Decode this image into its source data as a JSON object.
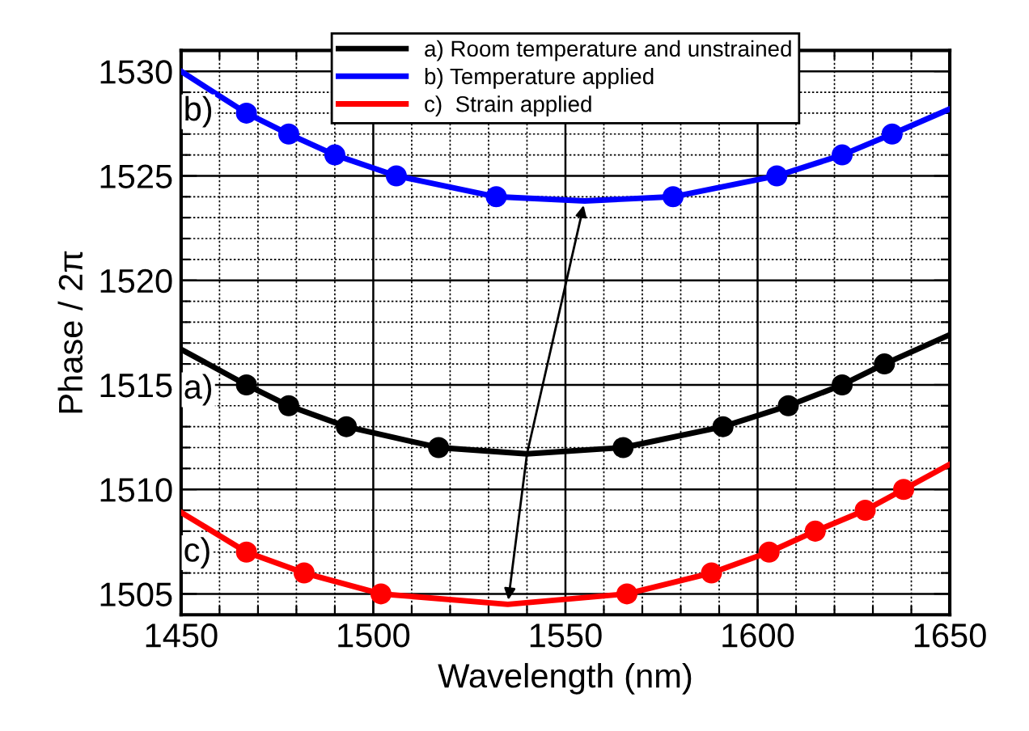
{
  "chart_data": {
    "type": "line",
    "xlabel": "Wavelength (nm)",
    "ylabel": "Phase / 2π",
    "xlim": [
      1450,
      1650
    ],
    "ylim": [
      1504,
      1531
    ],
    "xticks": [
      1450,
      {
        "value": 1460,
        "label": null
      },
      {
        "value": 1470,
        "label": null
      },
      {
        "value": 1480,
        "label": null
      },
      {
        "value": 1490,
        "label": null
      },
      1500,
      {
        "value": 1510,
        "label": null
      },
      {
        "value": 1520,
        "label": null
      },
      {
        "value": 1530,
        "label": null
      },
      {
        "value": 1540,
        "label": null
      },
      1550,
      {
        "value": 1560,
        "label": null
      },
      {
        "value": 1570,
        "label": null
      },
      {
        "value": 1580,
        "label": null
      },
      {
        "value": 1590,
        "label": null
      },
      1600,
      {
        "value": 1610,
        "label": null
      },
      {
        "value": 1620,
        "label": null
      },
      {
        "value": 1630,
        "label": null
      },
      {
        "value": 1640,
        "label": null
      },
      1650
    ],
    "yticks": [
      1505,
      {
        "value": 1506,
        "label": null
      },
      {
        "value": 1507,
        "label": null
      },
      {
        "value": 1508,
        "label": null
      },
      {
        "value": 1509,
        "label": null
      },
      1510,
      {
        "value": 1511,
        "label": null
      },
      {
        "value": 1512,
        "label": null
      },
      {
        "value": 1513,
        "label": null
      },
      {
        "value": 1514,
        "label": null
      },
      1515,
      {
        "value": 1516,
        "label": null
      },
      {
        "value": 1517,
        "label": null
      },
      {
        "value": 1518,
        "label": null
      },
      {
        "value": 1519,
        "label": null
      },
      1520,
      {
        "value": 1521,
        "label": null
      },
      {
        "value": 1522,
        "label": null
      },
      {
        "value": 1523,
        "label": null
      },
      {
        "value": 1524,
        "label": null
      },
      1525,
      {
        "value": 1526,
        "label": null
      },
      {
        "value": 1527,
        "label": null
      },
      {
        "value": 1528,
        "label": null
      },
      {
        "value": 1529,
        "label": null
      },
      1530
    ],
    "grid": true,
    "legend": "top",
    "line_style": "solid",
    "series": [
      {
        "name": "a) Room temperature and unstrained",
        "color": "#000000",
        "x": [
          1450,
          1467,
          1478,
          1493,
          1517,
          1540,
          1565,
          1591,
          1608,
          1622,
          1633,
          1650
        ],
        "values": [
          1516.7,
          1515,
          1514,
          1513,
          1512,
          1511.7,
          1512,
          1513,
          1514,
          1515,
          1516,
          1517.4
        ]
      },
      {
        "name": "b) Temperature applied",
        "color": "#0000ff",
        "x": [
          1450,
          1467,
          1478,
          1490,
          1506,
          1532,
          1555,
          1578,
          1605,
          1622,
          1635,
          1650
        ],
        "values": [
          1530,
          1528,
          1527,
          1526,
          1525,
          1524,
          1523.8,
          1524,
          1525,
          1526,
          1527,
          1528.2
        ]
      },
      {
        "name": "c)  Strain applied",
        "color": "#ff0000",
        "x": [
          1450,
          1467,
          1482,
          1502,
          1535,
          1566,
          1588,
          1603,
          1615,
          1628,
          1638,
          1650
        ],
        "values": [
          1508.9,
          1507,
          1506,
          1505,
          1504.5,
          1505,
          1506,
          1507,
          1508,
          1509,
          1510,
          1511.2
        ]
      },
      {
        "color": "#000000",
        "type": "scatter",
        "marker": "circle",
        "x": [
          1467,
          1478,
          1493,
          1517,
          1565,
          1591,
          1608,
          1622,
          1633
        ],
        "values": [
          1515,
          1514,
          1513,
          1512,
          1512,
          1513,
          1514,
          1515,
          1516
        ]
      },
      {
        "color": "#0000ff",
        "type": "scatter",
        "marker": "circle",
        "x": [
          1467,
          1478,
          1490,
          1506,
          1532,
          1578,
          1605,
          1622,
          1635
        ],
        "values": [
          1528,
          1527,
          1526,
          1525,
          1524,
          1524,
          1525,
          1526,
          1527
        ]
      },
      {
        "color": "#ff0000",
        "type": "scatter",
        "marker": "circle",
        "x": [
          1467,
          1482,
          1502,
          1566,
          1588,
          1603,
          1615,
          1628,
          1638
        ],
        "values": [
          1507,
          1506,
          1505,
          1505,
          1506,
          1507,
          1508,
          1509,
          1510
        ]
      }
    ],
    "annotations": [
      "a)",
      "b)",
      "c)"
    ]
  }
}
